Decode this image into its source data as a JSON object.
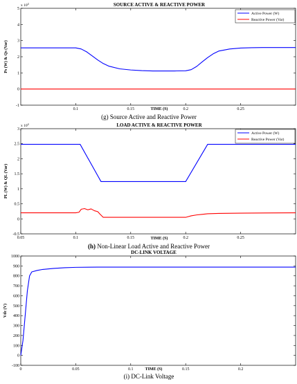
{
  "chart_data": [
    {
      "type": "line",
      "title": "SOURCE ACTIVE & REACTIVE POWER",
      "xlabel": "TIME (S)",
      "ylabel": "Ps (W) & Qs (Var)",
      "y_exponent": "x 10",
      "y_exponent_power": "4",
      "caption": "(g) Source Active and Reactive Power",
      "xlim": [
        0.05,
        0.3
      ],
      "ylim": [
        -1,
        5
      ],
      "xticks": [
        "0.1",
        "0.15",
        "0.2",
        "0.25"
      ],
      "yticks": [
        "-1",
        "0",
        "1",
        "2",
        "3",
        "4",
        "5"
      ],
      "legend": "top-right",
      "grid": false,
      "series": [
        {
          "name": "Active Power (W)",
          "color": "#0000ff",
          "x": [
            0.05,
            0.1,
            0.105,
            0.11,
            0.115,
            0.12,
            0.125,
            0.13,
            0.14,
            0.15,
            0.16,
            0.17,
            0.18,
            0.19,
            0.2,
            0.205,
            0.21,
            0.215,
            0.22,
            0.225,
            0.23,
            0.24,
            0.25,
            0.26,
            0.27,
            0.28,
            0.3
          ],
          "y": [
            2.55,
            2.55,
            2.48,
            2.3,
            2.05,
            1.8,
            1.58,
            1.42,
            1.25,
            1.18,
            1.14,
            1.12,
            1.12,
            1.12,
            1.13,
            1.2,
            1.4,
            1.68,
            1.95,
            2.18,
            2.35,
            2.48,
            2.54,
            2.56,
            2.57,
            2.57,
            2.57
          ]
        },
        {
          "name": "Reactive Power (Var)",
          "color": "#ff0000",
          "x": [
            0.05,
            0.3
          ],
          "y": [
            0,
            0
          ]
        }
      ]
    },
    {
      "type": "line",
      "title": "LOAD ACTIVE & REACTIVE POWER",
      "xlabel": "TIME (S)",
      "ylabel": "PL (W) & QL (Var)",
      "y_exponent": "x 10",
      "y_exponent_power": "4",
      "caption_bold": "(h)",
      "caption": " Non-Linear Load Active and Reactive Power",
      "xlim": [
        0.05,
        0.3
      ],
      "ylim": [
        -0.5,
        3
      ],
      "xticks": [
        "0.05",
        "0.1",
        "0.15",
        "0.2",
        "0.25"
      ],
      "yticks": [
        "-0.5",
        "0",
        "0.5",
        "1",
        "1.5",
        "2",
        "2.5",
        "3"
      ],
      "legend": "top-right",
      "grid": false,
      "series": [
        {
          "name": "Active Power (W)",
          "color": "#0000ff",
          "x": [
            0.05,
            0.104,
            0.123,
            0.2,
            0.22,
            0.3
          ],
          "y": [
            2.48,
            2.48,
            1.24,
            1.24,
            2.48,
            2.48
          ]
        },
        {
          "name": "Reactive Power (Var)",
          "color": "#ff0000",
          "x": [
            0.05,
            0.1,
            0.103,
            0.105,
            0.108,
            0.111,
            0.114,
            0.117,
            0.12,
            0.122,
            0.125,
            0.15,
            0.2,
            0.202,
            0.205,
            0.21,
            0.215,
            0.22,
            0.23,
            0.25,
            0.3
          ],
          "y": [
            0.2,
            0.2,
            0.22,
            0.32,
            0.34,
            0.3,
            0.33,
            0.27,
            0.24,
            0.16,
            0.05,
            0.05,
            0.05,
            0.07,
            0.1,
            0.13,
            0.15,
            0.17,
            0.18,
            0.19,
            0.2
          ]
        }
      ]
    },
    {
      "type": "line",
      "title": "DC-LINK VOLTAGE",
      "xlabel": "TIME (S)",
      "ylabel": "Vdc (V)",
      "caption": "(i) DC-Link Voltage",
      "xlim": [
        0,
        0.25
      ],
      "ylim": [
        -100,
        1000
      ],
      "xticks": [
        "0",
        "0.05",
        "0.1",
        "0.15",
        "0.2"
      ],
      "yticks": [
        "-100",
        "0",
        "100",
        "200",
        "300",
        "400",
        "500",
        "600",
        "700",
        "800",
        "900",
        "1000"
      ],
      "grid": false,
      "series": [
        {
          "name": "",
          "color": "#0000ff",
          "x": [
            0,
            0.002,
            0.004,
            0.006,
            0.008,
            0.01,
            0.015,
            0.02,
            0.03,
            0.04,
            0.05,
            0.07,
            0.1,
            0.25
          ],
          "y": [
            0,
            150,
            400,
            650,
            800,
            840,
            855,
            865,
            875,
            882,
            886,
            888,
            888,
            888
          ]
        }
      ]
    }
  ]
}
